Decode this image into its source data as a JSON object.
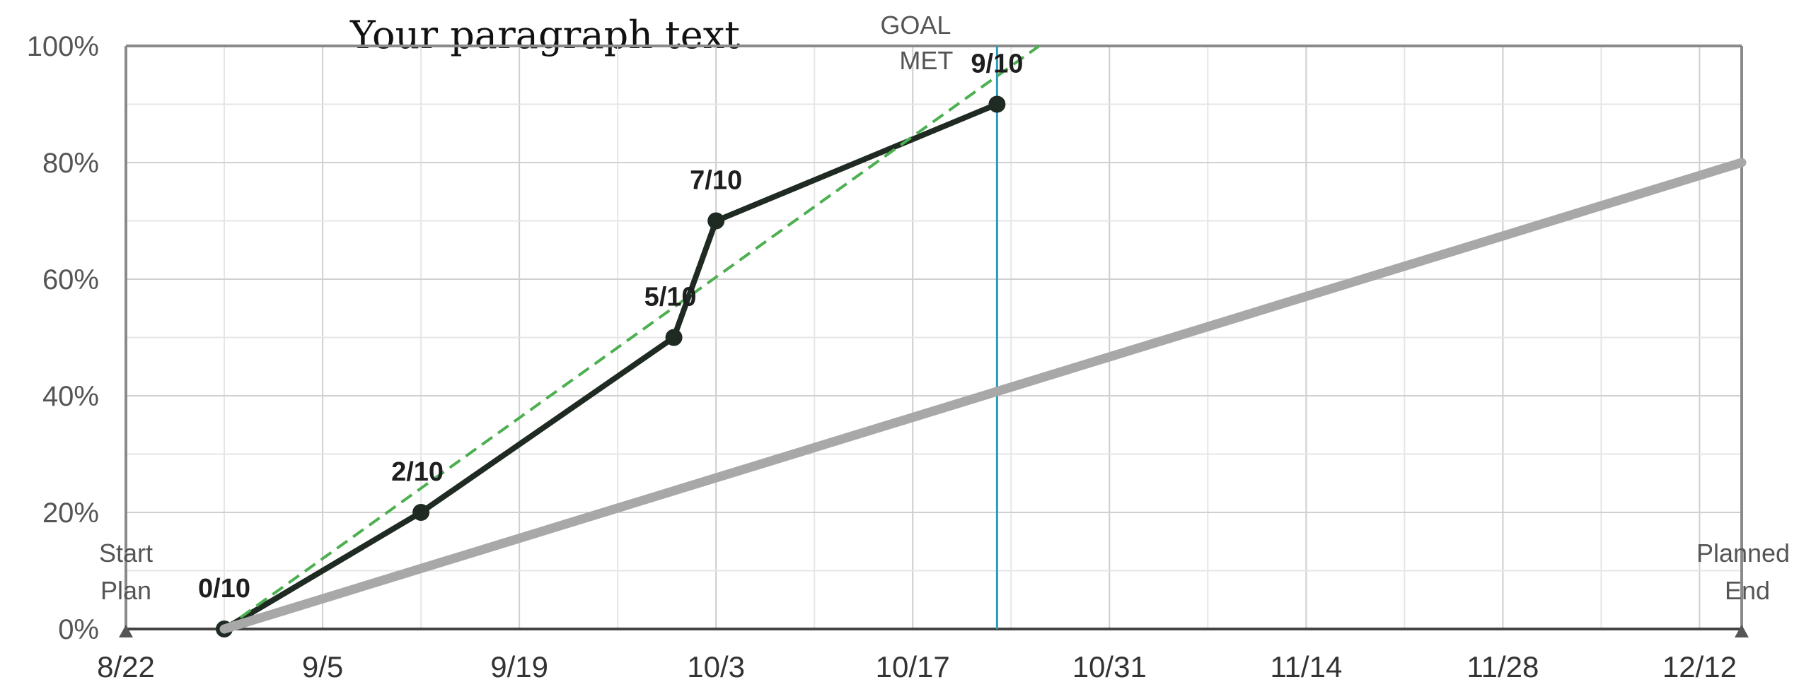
{
  "paragraph_text": "Your paragraph text",
  "chart_data": {
    "type": "line",
    "xlim": [
      "8/22",
      "12/15"
    ],
    "ylim": [
      0,
      100
    ],
    "y_ticks": [
      "0%",
      "20%",
      "40%",
      "60%",
      "80%",
      "100%"
    ],
    "x_ticks": [
      "8/22",
      "9/5",
      "9/19",
      "10/3",
      "10/17",
      "10/31",
      "11/14",
      "11/28",
      "12/12"
    ],
    "grid": true,
    "series": [
      {
        "color": "#1e2a22",
        "style": "solid-markers",
        "points": [
          {
            "x": "8/29",
            "y": 0,
            "label": "0/10"
          },
          {
            "x": "9/12",
            "y": 20,
            "label": "2/10"
          },
          {
            "x": "9/30",
            "y": 50,
            "label": "5/10"
          },
          {
            "x": "10/3",
            "y": 70,
            "label": "7/10"
          },
          {
            "x": "10/23",
            "y": 90,
            "label": "9/10"
          }
        ]
      },
      {
        "color": "#4caf50",
        "style": "dashed",
        "points": [
          {
            "x": "8/29",
            "y": 0
          },
          {
            "x": "10/26",
            "y": 100
          }
        ]
      },
      {
        "color": "#a8a8a8",
        "style": "thick",
        "points": [
          {
            "x": "8/29",
            "y": 0
          },
          {
            "x": "12/15",
            "y": 80
          }
        ]
      }
    ],
    "goal_line": {
      "x": "10/23",
      "color": "#2a9bb8",
      "label_line1": "GOAL",
      "label_line2": "MET"
    },
    "start_annotation": {
      "line1": "Start",
      "line2": "Plan"
    },
    "end_annotation": {
      "line1": "Planned",
      "line2": "End"
    }
  }
}
